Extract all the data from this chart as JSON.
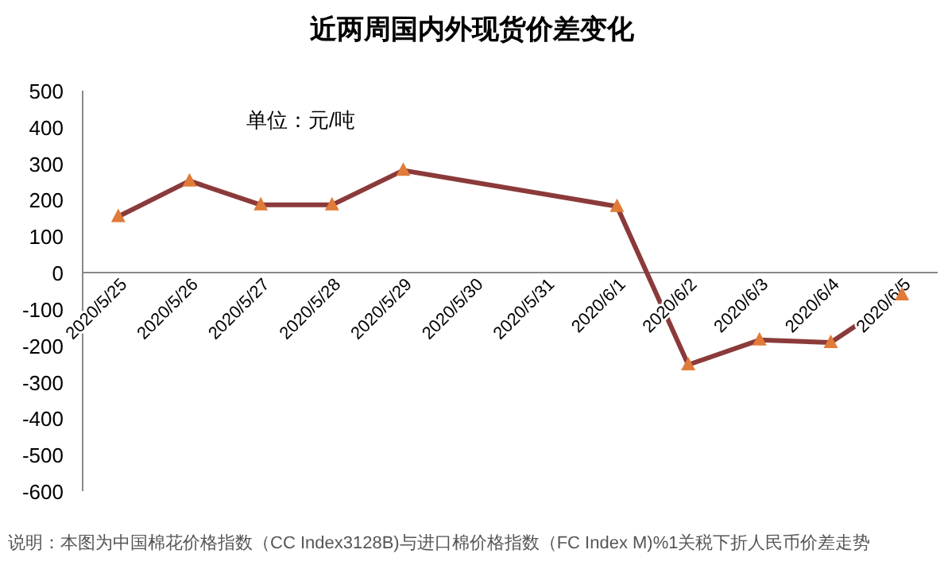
{
  "chart_data": {
    "type": "line",
    "title": "近两周国内外现货价差变化",
    "x": [
      "2020-05-25",
      "2020-05-26",
      "2020-05-27",
      "2020-05-28",
      "2020-05-29",
      "2020-06-01",
      "2020-06-02",
      "2020-06-03",
      "2020-06-04",
      "2020-06-05"
    ],
    "series": [
      {
        "color": "#8b3a3a",
        "colors": [
          "#e07b39",
          "#e07b39",
          "#e07b39",
          "#e07b39",
          "#e07b39",
          "#e07b39",
          "#e07b39",
          "#e07b39",
          "#e07b39",
          "#e07b39"
        ],
        "values": [
          154,
          252,
          186,
          186,
          281,
          182,
          -253,
          -185,
          -192,
          -61
        ]
      }
    ],
    "xlim": [
      "2020-05-24T12:00",
      "2020-06-05T12:00"
    ],
    "xticks": [
      {
        "value": "2020-05-25",
        "label": "2020/5/25"
      },
      {
        "value": "2020-05-26",
        "label": "2020/5/26"
      },
      {
        "value": "2020-05-27",
        "label": "2020/5/27"
      },
      {
        "value": "2020-05-28",
        "label": "2020/5/28"
      },
      {
        "value": "2020-05-29",
        "label": "2020/5/29"
      },
      {
        "value": "2020-05-30",
        "label": "2020/5/30"
      },
      {
        "value": "2020-05-31",
        "label": "2020/5/31"
      },
      {
        "value": "2020-06-01",
        "label": "2020/6/1"
      },
      {
        "value": "2020-06-02",
        "label": "2020/6/2"
      },
      {
        "value": "2020-06-03",
        "label": "2020/6/3"
      },
      {
        "value": "2020-06-04",
        "label": "2020/6/4"
      },
      {
        "value": "2020-06-05",
        "label": "2020/6/5"
      }
    ],
    "ylim": [
      -600,
      500
    ],
    "yticks": [
      -600,
      -500,
      -400,
      -300,
      -200,
      -100,
      0,
      100,
      200,
      300,
      400,
      500
    ],
    "marker": "triangle",
    "grid": false,
    "annotations": [
      "单位：元/吨",
      "说明：本图为中国棉花价格指数（CC Index3128B)与进口棉价格指数（FC Index M)%1关税下折人民币价差走势"
    ]
  }
}
